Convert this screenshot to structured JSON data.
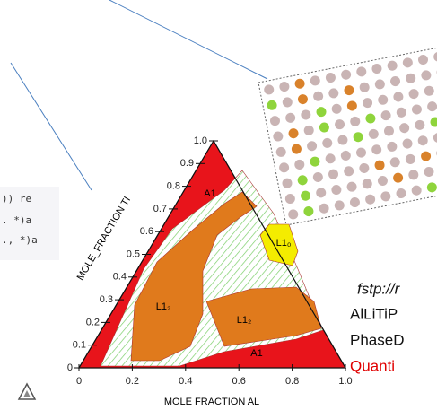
{
  "code": {
    "lines": [
      ")) re",
      ". *)a",
      "., *)a"
    ]
  },
  "diagram": {
    "y_axis_label": "MOLE_FRACTION TI",
    "x_axis_label": "MOLE FRACTION AL",
    "ti_ticks": [
      "0",
      "0.1",
      "0.2",
      "0.3",
      "0.4",
      "0.5",
      "0.6",
      "0.7",
      "0.8",
      "0.9",
      "1.0"
    ],
    "al_ticks": [
      "0",
      "0.2",
      "0.4",
      "0.6",
      "0.8",
      "1.0"
    ],
    "phases": [
      "A1",
      "L1₀",
      "L1₂",
      "L1₂",
      "A1"
    ]
  },
  "side_text": [
    "fstp://r",
    "AlLiTiP",
    "PhaseD",
    "Quanti"
  ]
}
